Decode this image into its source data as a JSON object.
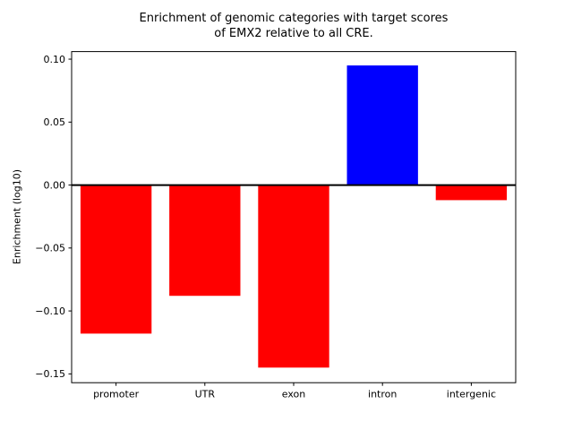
{
  "chart_data": {
    "type": "bar",
    "title": "Enrichment of genomic categories with target scores\nof EMX2 relative to all CRE.",
    "ylabel": "Enrichment (log10)",
    "xlabel": "",
    "categories": [
      "promoter",
      "UTR",
      "exon",
      "intron",
      "intergenic"
    ],
    "values": [
      -0.118,
      -0.088,
      -0.145,
      0.095,
      -0.012
    ],
    "bar_colors": [
      "#ff0000",
      "#ff0000",
      "#ff0000",
      "#0000ff",
      "#ff0000"
    ],
    "negative_color": "#ff0000",
    "positive_color": "#0000ff",
    "yticks": [
      0.1,
      0.05,
      0.0,
      -0.05,
      -0.1,
      -0.15
    ],
    "ylim": [
      -0.157,
      0.106
    ],
    "zero_line": true,
    "grid": false,
    "legend": null,
    "background": "#ffffff",
    "axis_color": "#000000"
  }
}
